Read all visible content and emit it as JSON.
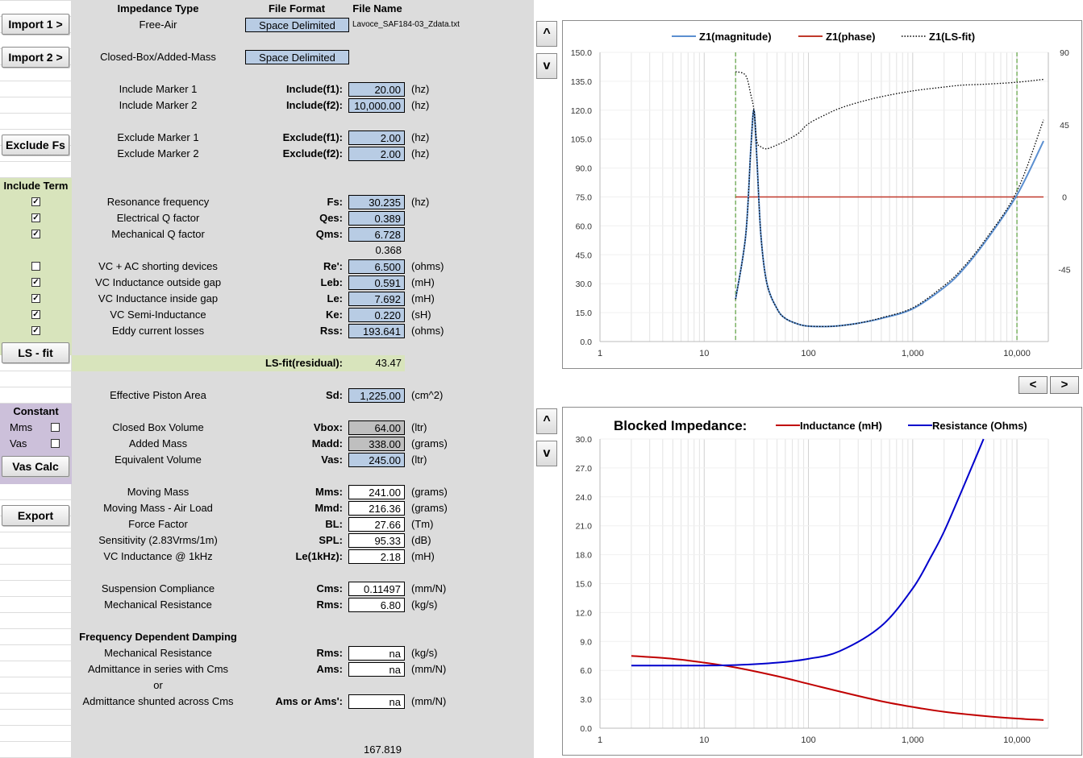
{
  "header": {
    "impedance_type": "Impedance Type",
    "file_format": "File Format",
    "file_name": "File Name"
  },
  "buttons": {
    "import1": "Import 1 >",
    "import2": "Import 2 >",
    "exclude_fs": "Exclude Fs",
    "ls_fit": "LS - fit",
    "vas_calc": "Vas Calc",
    "export": "Export"
  },
  "imports": {
    "row1": {
      "type": "Free-Air",
      "format": "Space Delimited",
      "filename": "Lavoce_SAF184-03_Zdata.txt"
    },
    "row2": {
      "type": "Closed-Box/Added-Mass",
      "format": "Space Delimited"
    }
  },
  "include_markers": [
    {
      "label": "Include Marker 1",
      "sym": "Include(f1):",
      "value": "20.00",
      "unit": "(hz)"
    },
    {
      "label": "Include Marker 2",
      "sym": "Include(f2):",
      "value": "10,000.00",
      "unit": "(hz)"
    }
  ],
  "exclude_markers": [
    {
      "label": "Exclude Marker 1",
      "sym": "Exclude(f1):",
      "value": "2.00",
      "unit": "(hz)"
    },
    {
      "label": "Exclude Marker 2",
      "sym": "Exclude(f2):",
      "value": "2.00",
      "unit": "(hz)"
    }
  ],
  "include_term": {
    "title": "Include Term"
  },
  "terms1": [
    {
      "checked": true,
      "label": "Resonance frequency",
      "sym": "Fs:",
      "value": "30.235",
      "unit": "(hz)"
    },
    {
      "checked": true,
      "label": "Electrical Q factor",
      "sym": "Qes:",
      "value": "0.389",
      "unit": ""
    },
    {
      "checked": true,
      "label": "Mechanical Q factor",
      "sym": "Qms:",
      "value": "6.728",
      "unit": ""
    }
  ],
  "qts_value": "0.368",
  "terms2": [
    {
      "checked": false,
      "label": "VC + AC shorting devices",
      "sym": "Re':",
      "value": "6.500",
      "unit": "(ohms)"
    },
    {
      "checked": true,
      "label": "VC Inductance outside gap",
      "sym": "Leb:",
      "value": "0.591",
      "unit": "(mH)"
    },
    {
      "checked": true,
      "label": "VC Inductance inside gap",
      "sym": "Le:",
      "value": "7.692",
      "unit": "(mH)"
    },
    {
      "checked": true,
      "label": "VC Semi-Inductance",
      "sym": "Ke:",
      "value": "0.220",
      "unit": "(sH)"
    },
    {
      "checked": true,
      "label": "Eddy current losses",
      "sym": "Rss:",
      "value": "193.641",
      "unit": "(ohms)"
    }
  ],
  "residual": {
    "label": "LS-fit(residual):",
    "value": "43.47"
  },
  "piston": {
    "label": "Effective Piston Area",
    "sym": "Sd:",
    "value": "1,225.00",
    "unit": "(cm^2)"
  },
  "constant": {
    "title": "Constant",
    "mms": "Mms",
    "vas": "Vas"
  },
  "box_rows": [
    {
      "label": "Closed Box Volume",
      "sym": "Vbox:",
      "value": "64.00",
      "unit": "(ltr)",
      "style": "gray"
    },
    {
      "label": "Added Mass",
      "sym": "Madd:",
      "value": "338.00",
      "unit": "(grams)",
      "style": "gray"
    },
    {
      "label": "Equivalent Volume",
      "sym": "Vas:",
      "value": "245.00",
      "unit": "(ltr)",
      "style": "blue"
    }
  ],
  "results": [
    {
      "label": "Moving Mass",
      "sym": "Mms:",
      "value": "241.00",
      "unit": "(grams)"
    },
    {
      "label": "Moving Mass - Air Load",
      "sym": "Mmd:",
      "value": "216.36",
      "unit": "(grams)"
    },
    {
      "label": "Force Factor",
      "sym": "BL:",
      "value": "27.66",
      "unit": "(Tm)"
    },
    {
      "label": "Sensitivity (2.83Vrms/1m)",
      "sym": "SPL:",
      "value": "95.33",
      "unit": "(dB)"
    },
    {
      "label": "VC Inductance @ 1kHz",
      "sym": "Le(1kHz):",
      "value": "2.18",
      "unit": "(mH)"
    }
  ],
  "compliance": [
    {
      "label": "Suspension Compliance",
      "sym": "Cms:",
      "value": "0.11497",
      "unit": "(mm/N)"
    },
    {
      "label": "Mechanical Resistance",
      "sym": "Rms:",
      "value": "6.80",
      "unit": "(kg/s)"
    }
  ],
  "damping": {
    "title": "Frequency Dependent Damping",
    "rows": [
      {
        "label": "Mechanical Resistance",
        "sym": "Rms:",
        "value": "na",
        "unit": "(kg/s)"
      },
      {
        "label": "Admittance in series with Cms",
        "sym": "Ams:",
        "value": "na",
        "unit": "(mm/N)"
      }
    ],
    "or": "or",
    "last": {
      "label": "Admittance shunted across Cms",
      "sym": "Ams or Ams':",
      "value": "na",
      "unit": "(mm/N)"
    }
  },
  "bottom_value": "167.819",
  "scroll": {
    "up": "^",
    "down": "v"
  },
  "nav": {
    "prev": "<",
    "next": ">"
  },
  "chart_data": [
    {
      "type": "line",
      "title": "",
      "xscale": "log",
      "xlim": [
        1,
        20000
      ],
      "ylim": [
        0,
        150
      ],
      "y2lim": [
        -90,
        90
      ],
      "xticks": [
        "1",
        "10",
        "100",
        "1,000",
        "10,000"
      ],
      "yticks": [
        "0.0",
        "15.0",
        "30.0",
        "45.0",
        "60.0",
        "75.0",
        "90.0",
        "105.0",
        "120.0",
        "135.0",
        "150.0"
      ],
      "y2ticks": [
        "-90",
        "-45",
        "0",
        "45",
        "90"
      ],
      "markers_x": [
        20,
        10000
      ],
      "legend_position": "top",
      "colors": {
        "magnitude": "#5b8fd0",
        "phase": "#c0392b",
        "fit": "#000000",
        "marker": "#6aa84f"
      },
      "series": [
        {
          "name": "Z1(magnitude)",
          "x": [
            20,
            25,
            28,
            30,
            32,
            35,
            40,
            50,
            60,
            80,
            100,
            150,
            200,
            300,
            500,
            1000,
            2000,
            3000,
            5000,
            10000,
            18000
          ],
          "y": [
            22,
            55,
            100,
            120,
            95,
            55,
            30,
            17,
            12,
            9,
            8,
            7.8,
            8.2,
            9.5,
            12,
            17,
            28,
            37,
            52,
            76,
            104
          ]
        },
        {
          "name": "Z1(phase)",
          "axis": "right",
          "x": [
            20,
            18000
          ],
          "y": [
            0,
            0
          ]
        },
        {
          "name": "Z1(LS-fit)",
          "style": "dotted",
          "x": [
            20,
            25,
            28,
            30,
            32,
            35,
            40,
            50,
            60,
            80,
            100,
            150,
            200,
            300,
            500,
            1000,
            2000,
            3000,
            5000,
            10000,
            18000
          ],
          "y": [
            140,
            138,
            128,
            120,
            104,
            101,
            100,
            102,
            104,
            108,
            113,
            118,
            121,
            124,
            127,
            130,
            132,
            133,
            133.5,
            134.5,
            136
          ]
        }
      ],
      "fit_low": {
        "x": [
          20,
          25,
          28,
          30,
          32,
          35,
          40,
          50,
          60,
          80,
          100,
          150,
          200,
          300,
          500,
          1000,
          2000,
          3000,
          5000,
          10000,
          18000
        ],
        "y": [
          22,
          55,
          100,
          120,
          95,
          55,
          30,
          17,
          12,
          9,
          8,
          7.8,
          8.2,
          9.5,
          12.3,
          17.5,
          29,
          38,
          53,
          78,
          115
        ]
      }
    },
    {
      "type": "line",
      "title": "Blocked Impedance:",
      "xscale": "log",
      "xlim": [
        1,
        20000
      ],
      "ylim": [
        0,
        30
      ],
      "xticks": [
        "1",
        "10",
        "100",
        "1,000",
        "10,000"
      ],
      "yticks": [
        "0.0",
        "3.0",
        "6.0",
        "9.0",
        "12.0",
        "15.0",
        "18.0",
        "21.0",
        "24.0",
        "27.0",
        "30.0"
      ],
      "legend_position": "top-right",
      "colors": {
        "inductance": "#c00000",
        "resistance": "#0000cc"
      },
      "series": [
        {
          "name": "Inductance (mH)",
          "x": [
            2,
            5,
            10,
            20,
            50,
            100,
            200,
            500,
            1000,
            2000,
            5000,
            10000,
            18000
          ],
          "y": [
            7.5,
            7.2,
            6.8,
            6.3,
            5.4,
            4.6,
            3.8,
            2.8,
            2.2,
            1.7,
            1.25,
            1.0,
            0.85
          ]
        },
        {
          "name": "Resistance (Ohms)",
          "x": [
            2,
            5,
            10,
            20,
            50,
            100,
            200,
            500,
            1000,
            1500,
            2000,
            3000,
            4000,
            5000,
            6000
          ],
          "y": [
            6.5,
            6.5,
            6.5,
            6.55,
            6.8,
            7.2,
            8.0,
            10.6,
            14.5,
            17.8,
            20.4,
            24.8,
            28.0,
            30.5,
            32.5
          ]
        }
      ]
    }
  ]
}
